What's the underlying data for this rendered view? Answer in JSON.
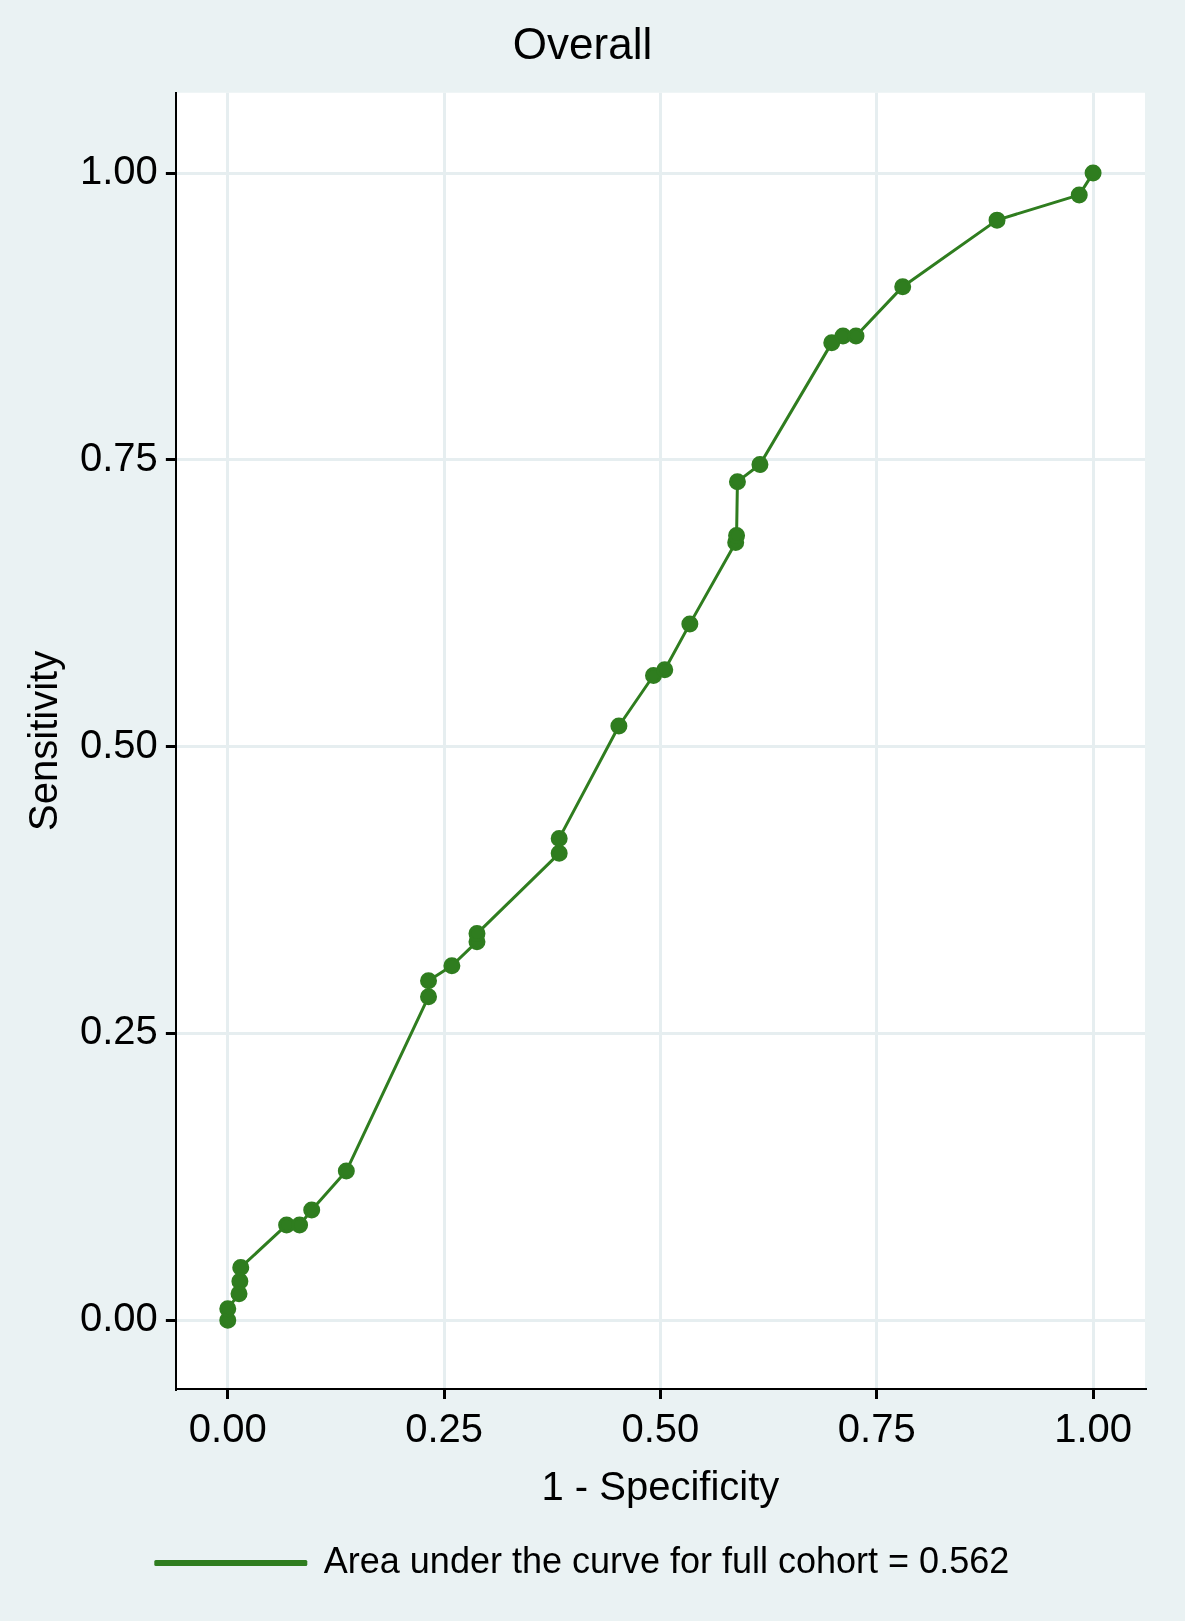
{
  "chart_data": {
    "type": "line",
    "title": "Overall",
    "xlabel": "1 - Specificity",
    "ylabel": "Sensitivity",
    "x": [
      0,
      0,
      0.013,
      0.014,
      0.015,
      0.068,
      0.083,
      0.097,
      0.137,
      0.232,
      0.232,
      0.259,
      0.288,
      0.288,
      0.383,
      0.383,
      0.452,
      0.492,
      0.505,
      0.534,
      0.587,
      0.588,
      0.589,
      0.615,
      0.698,
      0.711,
      0.726,
      0.78,
      0.889,
      0.984,
      1
    ],
    "series": [
      {
        "name": "Area under the curve for full cohort = 0.562",
        "color": "#2f7d1f",
        "values": [
          0,
          0.01,
          0.023,
          0.034,
          0.046,
          0.083,
          0.083,
          0.096,
          0.13,
          0.282,
          0.296,
          0.309,
          0.33,
          0.337,
          0.407,
          0.42,
          0.518,
          0.562,
          0.567,
          0.607,
          0.678,
          0.684,
          0.731,
          0.746,
          0.852,
          0.858,
          0.858,
          0.901,
          0.959,
          0.981,
          1
        ]
      }
    ],
    "xlim": [
      -0.06,
      1.06
    ],
    "ylim": [
      -0.06,
      1.07
    ],
    "xticks": [
      {
        "value": 0,
        "label": "0.00"
      },
      {
        "value": 0.25,
        "label": "0.25"
      },
      {
        "value": 0.5,
        "label": "0.50"
      },
      {
        "value": 0.75,
        "label": "0.75"
      },
      {
        "value": 1,
        "label": "1.00"
      }
    ],
    "yticks": [
      {
        "value": 0,
        "label": "0.00"
      },
      {
        "value": 0.25,
        "label": "0.25"
      },
      {
        "value": 0.5,
        "label": "0.50"
      },
      {
        "value": 0.75,
        "label": "0.75"
      },
      {
        "value": 1,
        "label": "1.00"
      }
    ],
    "grid": true,
    "legend": "bottom",
    "marker": "circle",
    "line_style": "solid"
  }
}
